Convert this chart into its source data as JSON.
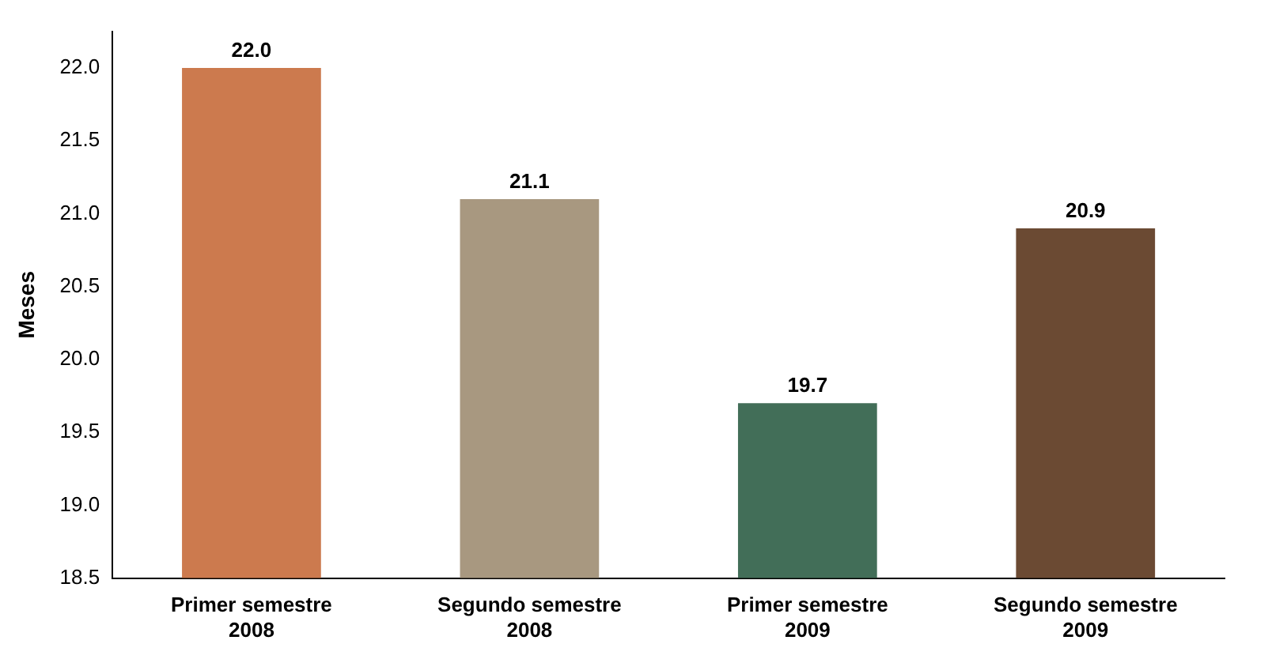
{
  "chart_data": {
    "type": "bar",
    "ylabel": "Meses",
    "categories": [
      "Primer semestre 2008",
      "Segundo semestre 2008",
      "Primer semestre 2009",
      "Segundo semestre 2009"
    ],
    "values": [
      22.0,
      21.1,
      19.7,
      20.9
    ],
    "colors": [
      "#cc7a4e",
      "#a89880",
      "#426e58",
      "#6b4a33"
    ],
    "value_labels": [
      "22.0",
      "21.1",
      "19.7",
      "20.9"
    ],
    "ylim": [
      18.5,
      22.25
    ],
    "yticks": [
      {
        "value": 18.5,
        "label": "18.5"
      },
      {
        "value": 19,
        "label": "19.0"
      },
      {
        "value": 19.5,
        "label": "19.5"
      },
      {
        "value": 20,
        "label": "20.0"
      },
      {
        "value": 20.5,
        "label": "20.5"
      },
      {
        "value": 21,
        "label": "21.0"
      },
      {
        "value": 21.5,
        "label": "21.5"
      },
      {
        "value": 22,
        "label": "22.0"
      }
    ],
    "grid": false,
    "legend": false
  }
}
